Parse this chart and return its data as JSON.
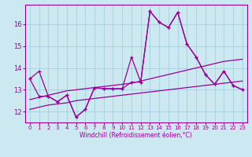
{
  "xlabel": "Windchill (Refroidissement éolien,°C)",
  "x": [
    0,
    1,
    2,
    3,
    4,
    5,
    6,
    7,
    8,
    9,
    10,
    11,
    12,
    13,
    14,
    15,
    16,
    17,
    18,
    19,
    20,
    21,
    22,
    23
  ],
  "line1": [
    13.5,
    13.85,
    12.7,
    12.45,
    12.75,
    11.75,
    12.1,
    13.1,
    13.05,
    13.05,
    13.05,
    14.5,
    13.35,
    16.6,
    16.1,
    15.85,
    16.55,
    15.1,
    14.5,
    13.7,
    13.25,
    13.85,
    13.2,
    13.0
  ],
  "line2": [
    13.5,
    12.7,
    12.7,
    12.45,
    12.75,
    11.75,
    12.1,
    13.1,
    13.05,
    13.05,
    13.05,
    13.35,
    13.35,
    16.6,
    16.1,
    15.85,
    16.55,
    15.1,
    14.5,
    13.7,
    13.25,
    13.85,
    13.2,
    13.0
  ],
  "trend1": [
    12.55,
    12.65,
    12.75,
    12.85,
    12.95,
    13.0,
    13.05,
    13.1,
    13.15,
    13.2,
    13.25,
    13.3,
    13.4,
    13.5,
    13.6,
    13.7,
    13.8,
    13.9,
    14.0,
    14.1,
    14.2,
    14.3,
    14.35,
    14.4
  ],
  "trend2": [
    12.1,
    12.2,
    12.3,
    12.35,
    12.4,
    12.5,
    12.55,
    12.6,
    12.65,
    12.7,
    12.75,
    12.8,
    12.85,
    12.9,
    12.95,
    13.0,
    13.05,
    13.1,
    13.15,
    13.2,
    13.25,
    13.3,
    13.35,
    13.4
  ],
  "line_color": "#990099",
  "bg_color": "#cce8f0",
  "grid_color": "#99ccdd",
  "ylim": [
    11.5,
    16.9
  ],
  "yticks": [
    12,
    13,
    14,
    15,
    16
  ],
  "xticks": [
    0,
    1,
    2,
    3,
    4,
    5,
    6,
    7,
    8,
    9,
    10,
    11,
    12,
    13,
    14,
    15,
    16,
    17,
    18,
    19,
    20,
    21,
    22,
    23
  ]
}
